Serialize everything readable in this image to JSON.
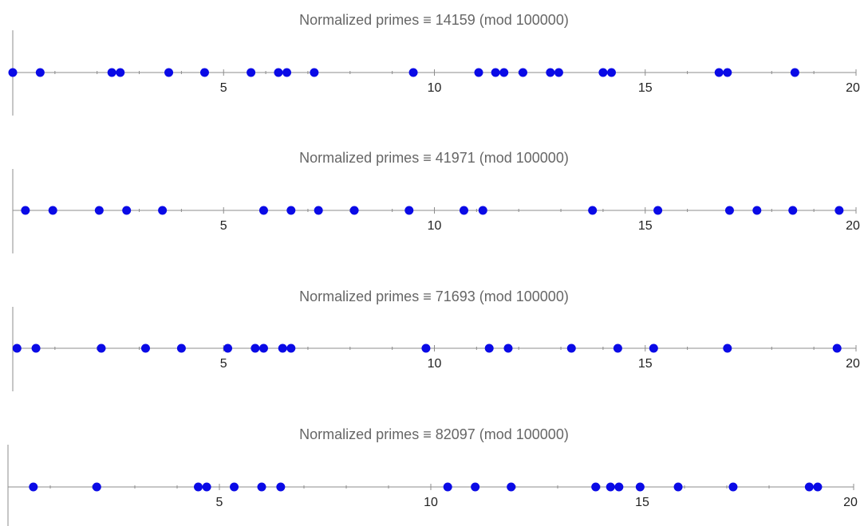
{
  "chart_data": [
    {
      "type": "scatter",
      "title": "Normalized primes ≡ 14159 (mod 100000)",
      "xlim": [
        0,
        20
      ],
      "xticks": [
        5,
        10,
        15,
        20
      ],
      "x": [
        0.0,
        0.65,
        2.35,
        2.55,
        3.7,
        4.55,
        5.65,
        6.3,
        6.5,
        7.15,
        9.5,
        11.05,
        11.45,
        11.65,
        12.1,
        12.75,
        12.95,
        14.0,
        14.2,
        16.75,
        16.95,
        18.55
      ]
    },
    {
      "type": "scatter",
      "title": "Normalized primes ≡ 41971 (mod 100000)",
      "xlim": [
        0,
        20
      ],
      "xticks": [
        5,
        10,
        15,
        20
      ],
      "x": [
        0.3,
        0.95,
        2.05,
        2.7,
        3.55,
        5.95,
        6.6,
        7.25,
        8.1,
        9.4,
        10.7,
        11.15,
        13.75,
        15.3,
        17.0,
        17.65,
        18.5,
        19.6
      ]
    },
    {
      "type": "scatter",
      "title": "Normalized primes ≡ 71693 (mod 100000)",
      "xlim": [
        0,
        20
      ],
      "xticks": [
        5,
        10,
        15,
        20
      ],
      "x": [
        0.1,
        0.55,
        2.1,
        3.15,
        4.0,
        5.1,
        5.75,
        5.95,
        6.4,
        6.6,
        9.8,
        11.3,
        11.75,
        13.25,
        14.35,
        15.2,
        16.95,
        19.55
      ]
    },
    {
      "type": "scatter",
      "title": "Normalized primes ≡ 82097 (mod 100000)",
      "xlim": [
        0,
        20
      ],
      "xticks": [
        5,
        10,
        15,
        20
      ],
      "x": [
        0.6,
        2.1,
        4.5,
        4.7,
        5.35,
        6.0,
        6.45,
        10.4,
        11.05,
        11.9,
        13.9,
        14.25,
        14.45,
        14.95,
        15.85,
        17.15,
        18.95,
        19.15
      ]
    }
  ]
}
